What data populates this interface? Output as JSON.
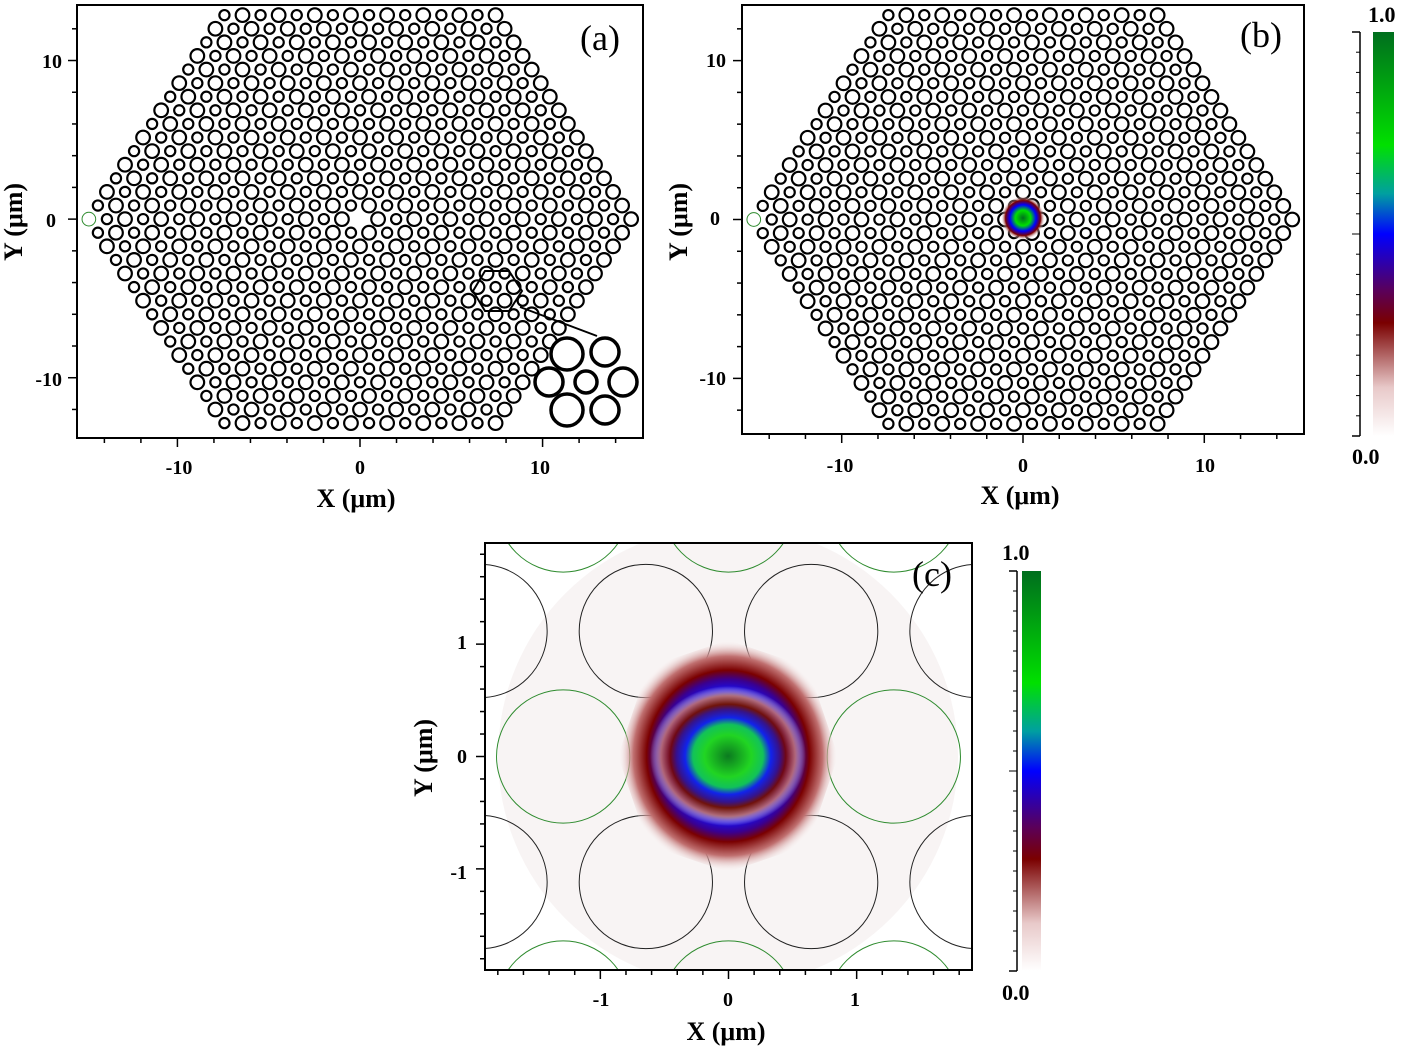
{
  "panels": [
    {
      "id": "a",
      "label": "(a)",
      "xlabel": "X (μm)",
      "ylabel": "Y (μm)",
      "xticks": [
        -10,
        0,
        10
      ],
      "yticks": [
        10,
        0,
        -10
      ],
      "xlim": [
        -15.5,
        15.5
      ],
      "ylim": [
        -13.8,
        13.5
      ]
    },
    {
      "id": "b",
      "label": "(b)",
      "xlabel": "X (μm)",
      "ylabel": "Y (μm)",
      "xticks": [
        -10,
        0,
        10
      ],
      "yticks": [
        10,
        0,
        -10
      ],
      "xlim": [
        -15.5,
        15.5
      ],
      "ylim": [
        -13.5,
        13.5
      ],
      "colorbar": {
        "max_label": "1.0",
        "min_label": "0.0"
      }
    },
    {
      "id": "c",
      "label": "(c)",
      "xlabel": "X (μm)",
      "ylabel": "Y (μm)",
      "xticks": [
        -1,
        0,
        1
      ],
      "yticks": [
        1,
        0,
        -1
      ],
      "xlim": [
        -1.9,
        1.9
      ],
      "ylim": [
        -1.9,
        1.9
      ],
      "colorbar": {
        "max_label": "1.0",
        "min_label": "0.0"
      }
    }
  ],
  "colors": {
    "hole_outline": "#000000",
    "green_outline": "#2e8b2e",
    "cmap": [
      "#ffffff",
      "#7a0000",
      "#0000ff",
      "#00e000",
      "#006e1e"
    ]
  },
  "lattice": {
    "pitch": 0.99,
    "rings": 15,
    "large_radius": 0.43,
    "small_radius": 0.32
  }
}
